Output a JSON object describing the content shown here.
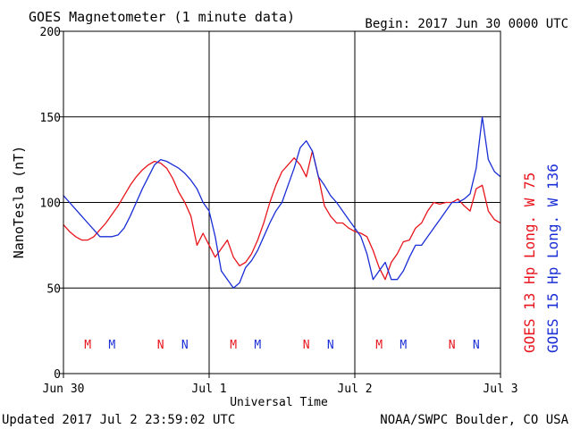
{
  "header": {
    "title": "GOES Magnetometer (1 minute data)",
    "begin": "Begin:  2017 Jun 30 0000 UTC"
  },
  "footer": {
    "updated": "Updated 2017 Jul  2 23:59:02 UTC",
    "credit": "NOAA/SWPC Boulder, CO USA"
  },
  "colors": {
    "goes13": "#e8141c",
    "goes15": "#1a2ed6",
    "axis": "#000000",
    "grid": "#000000",
    "background": "#ffffff"
  },
  "chart_data": {
    "type": "line",
    "title": "GOES Magnetometer (1 minute data)",
    "xlabel": "Universal Time",
    "ylabel": "NanoTesla (nT)",
    "xlim": [
      0,
      72
    ],
    "ylim": [
      0,
      200
    ],
    "x_unit": "hours since 2017 Jun 30 0000 UTC",
    "yticks": [
      0,
      50,
      100,
      150,
      200
    ],
    "xticks": [
      {
        "x": 0,
        "label": "Jun 30"
      },
      {
        "x": 24,
        "label": "Jul 1"
      },
      {
        "x": 48,
        "label": "Jul 2"
      },
      {
        "x": 72,
        "label": "Jul 3"
      }
    ],
    "grid": true,
    "series": [
      {
        "name": "GOES 13 Hp  Long. W 75",
        "color": "#e8141c",
        "x": [
          0,
          1,
          2,
          3,
          4,
          5,
          6,
          7,
          8,
          9,
          10,
          11,
          12,
          13,
          14,
          15,
          16,
          17,
          18,
          19,
          20,
          21,
          22,
          23,
          24,
          25,
          26,
          27,
          28,
          29,
          30,
          31,
          32,
          33,
          34,
          35,
          36,
          37,
          38,
          39,
          40,
          41,
          42,
          43,
          44,
          45,
          46,
          47,
          48,
          49,
          50,
          51,
          52,
          53,
          54,
          55,
          56,
          57,
          58,
          59,
          60,
          61,
          62,
          63,
          64,
          65,
          66,
          67,
          68,
          69,
          70,
          71,
          72
        ],
        "y": [
          87,
          83,
          80,
          78,
          78,
          80,
          84,
          88,
          93,
          98,
          104,
          110,
          115,
          119,
          122,
          124,
          123,
          120,
          114,
          106,
          100,
          92,
          75,
          82,
          75,
          68,
          73,
          78,
          68,
          63,
          65,
          70,
          78,
          88,
          100,
          110,
          118,
          122,
          126,
          122,
          115,
          130,
          115,
          98,
          92,
          88,
          88,
          85,
          83,
          82,
          80,
          72,
          62,
          55,
          65,
          70,
          77,
          78,
          85,
          88,
          95,
          100,
          99,
          100,
          100,
          102,
          98,
          95,
          108,
          110,
          95,
          90,
          88
        ]
      },
      {
        "name": "GOES 15 Hp  Long. W 136",
        "color": "#1a2ed6",
        "x": [
          0,
          1,
          2,
          3,
          4,
          5,
          6,
          7,
          8,
          9,
          10,
          11,
          12,
          13,
          14,
          15,
          16,
          17,
          18,
          19,
          20,
          21,
          22,
          23,
          24,
          25,
          26,
          27,
          28,
          29,
          30,
          31,
          32,
          33,
          34,
          35,
          36,
          37,
          38,
          39,
          40,
          41,
          42,
          43,
          44,
          45,
          46,
          47,
          48,
          49,
          50,
          51,
          52,
          53,
          54,
          55,
          56,
          57,
          58,
          59,
          60,
          61,
          62,
          63,
          64,
          65,
          66,
          67,
          68,
          69,
          70,
          71,
          72
        ],
        "y": [
          104,
          100,
          96,
          92,
          88,
          84,
          80,
          80,
          80,
          81,
          85,
          92,
          100,
          108,
          115,
          122,
          125,
          124,
          122,
          120,
          117,
          113,
          108,
          100,
          95,
          80,
          60,
          55,
          50,
          53,
          62,
          66,
          72,
          80,
          88,
          95,
          100,
          110,
          120,
          132,
          136,
          130,
          115,
          110,
          104,
          100,
          95,
          90,
          85,
          80,
          70,
          55,
          60,
          65,
          55,
          55,
          60,
          68,
          75,
          75,
          80,
          85,
          90,
          95,
          100,
          100,
          102,
          105,
          120,
          150,
          125,
          118,
          115
        ]
      }
    ],
    "annotations": [
      {
        "x": 4,
        "label": "M",
        "series": "GOES 13 Hp  Long. W 75"
      },
      {
        "x": 8,
        "label": "M",
        "series": "GOES 15 Hp  Long. W 136"
      },
      {
        "x": 16,
        "label": "N",
        "series": "GOES 13 Hp  Long. W 75"
      },
      {
        "x": 20,
        "label": "N",
        "series": "GOES 15 Hp  Long. W 136"
      },
      {
        "x": 28,
        "label": "M",
        "series": "GOES 13 Hp  Long. W 75"
      },
      {
        "x": 32,
        "label": "M",
        "series": "GOES 15 Hp  Long. W 136"
      },
      {
        "x": 40,
        "label": "N",
        "series": "GOES 13 Hp  Long. W 75"
      },
      {
        "x": 44,
        "label": "N",
        "series": "GOES 15 Hp  Long. W 136"
      },
      {
        "x": 52,
        "label": "M",
        "series": "GOES 13 Hp  Long. W 75"
      },
      {
        "x": 56,
        "label": "M",
        "series": "GOES 15 Hp  Long. W 136"
      },
      {
        "x": 64,
        "label": "N",
        "series": "GOES 13 Hp  Long. W 75"
      },
      {
        "x": 68,
        "label": "N",
        "series": "GOES 15 Hp  Long. W 136"
      }
    ],
    "legend_position": "right-vertical"
  }
}
